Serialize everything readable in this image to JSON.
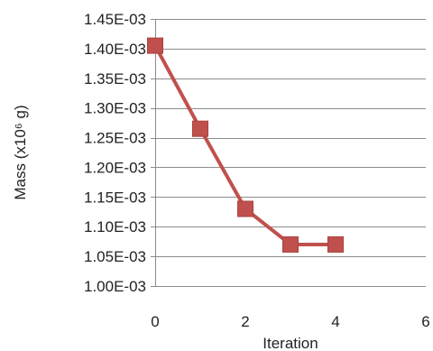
{
  "chart_data": {
    "type": "line",
    "title": "",
    "xlabel": "Iteration",
    "ylabel": "Mass (x10⁶ g)",
    "xlim": [
      0,
      6
    ],
    "ylim": [
      0.001,
      0.00145
    ],
    "x_ticks": [
      0,
      2,
      4,
      6
    ],
    "x_tick_labels": [
      "0",
      "2",
      "4",
      "6"
    ],
    "y_ticks": [
      0.001,
      0.00105,
      0.0011,
      0.00115,
      0.0012,
      0.00125,
      0.0013,
      0.00135,
      0.0014,
      0.00145
    ],
    "y_tick_labels": [
      "1.00E-03",
      "1.05E-03",
      "1.10E-03",
      "1.15E-03",
      "1.20E-03",
      "1.25E-03",
      "1.30E-03",
      "1.35E-03",
      "1.40E-03",
      "1.45E-03"
    ],
    "grid": true,
    "legend": false,
    "series": [
      {
        "x": [
          0,
          1,
          2,
          3,
          4
        ],
        "y": [
          0.001405,
          0.001265,
          0.00113,
          0.00107,
          0.00107
        ],
        "color": "#C0504D",
        "marker": "square"
      }
    ]
  }
}
